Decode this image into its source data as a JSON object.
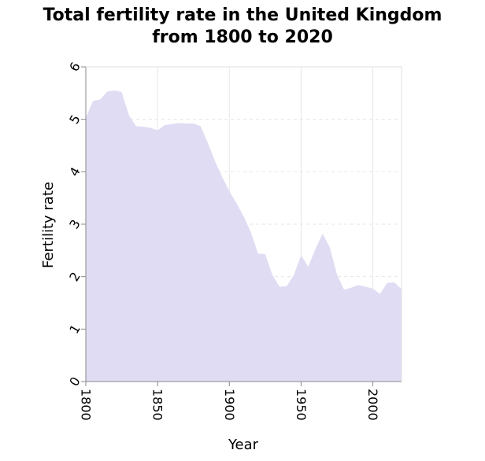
{
  "chart_data": {
    "type": "area",
    "title_line1": "Total fertility rate in the United Kingdom",
    "title_line2": "from 1800 to 2020",
    "xlabel": "Year",
    "ylabel": "Fertility rate",
    "xlim": [
      1800,
      2020
    ],
    "ylim": [
      0,
      6
    ],
    "xticks": [
      "1800",
      "1850",
      "1900",
      "1950",
      "2000"
    ],
    "yticks": [
      "0",
      "1",
      "2",
      "3",
      "4",
      "5",
      "6"
    ],
    "grid": true,
    "fill_color": "#e0dcf3",
    "series": [
      {
        "x": [
          1800,
          1805,
          1810,
          1815,
          1820,
          1825,
          1830,
          1835,
          1840,
          1845,
          1850,
          1855,
          1860,
          1865,
          1870,
          1875,
          1880,
          1885,
          1890,
          1895,
          1900,
          1905,
          1910,
          1915,
          1920,
          1925,
          1930,
          1935,
          1940,
          1945,
          1950,
          1955,
          1960,
          1965,
          1970,
          1975,
          1980,
          1985,
          1990,
          1995,
          2000,
          2005,
          2010,
          2015,
          2020
        ],
        "y": [
          5.03,
          5.35,
          5.38,
          5.53,
          5.55,
          5.52,
          5.08,
          4.87,
          4.86,
          4.84,
          4.79,
          4.89,
          4.91,
          4.93,
          4.92,
          4.92,
          4.87,
          4.55,
          4.2,
          3.9,
          3.63,
          3.4,
          3.15,
          2.85,
          2.44,
          2.43,
          2.03,
          1.81,
          1.82,
          2.03,
          2.41,
          2.19,
          2.53,
          2.82,
          2.56,
          2.04,
          1.75,
          1.79,
          1.84,
          1.81,
          1.77,
          1.67,
          1.88,
          1.89,
          1.76
        ]
      }
    ]
  }
}
